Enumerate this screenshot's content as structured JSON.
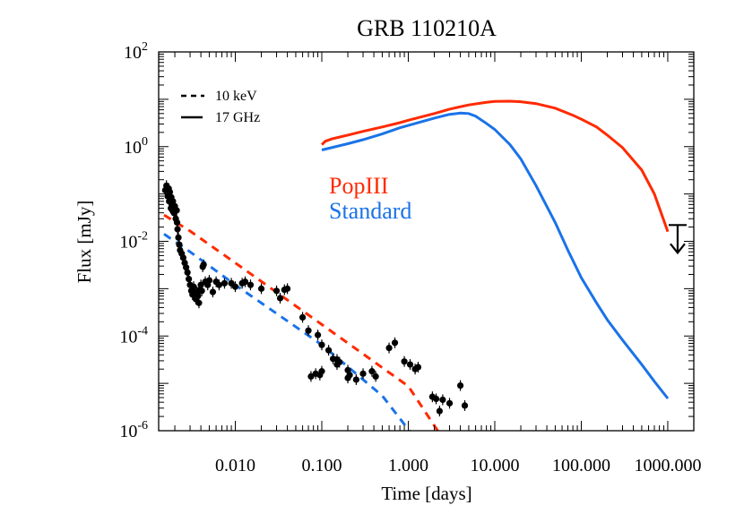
{
  "chart_data": {
    "type": "line",
    "title": "GRB 110210A",
    "xlabel": "Time [days]",
    "ylabel": "Flux [mJy]",
    "x_scale": "log",
    "y_scale": "log",
    "xlim": [
      0.0013,
      2000
    ],
    "ylim": [
      1e-06,
      100
    ],
    "x_ticks": [
      {
        "value": 0.01,
        "label": "0.010"
      },
      {
        "value": 0.1,
        "label": "0.100"
      },
      {
        "value": 1,
        "label": "1.000"
      },
      {
        "value": 10,
        "label": "10.000"
      },
      {
        "value": 100,
        "label": "100.000"
      },
      {
        "value": 1000,
        "label": "1000.000"
      }
    ],
    "y_ticks": [
      {
        "value": 1e-06,
        "mantissa": "10",
        "exp": "-6"
      },
      {
        "value": 0.0001,
        "mantissa": "10",
        "exp": "-4"
      },
      {
        "value": 0.01,
        "mantissa": "10",
        "exp": "-2"
      },
      {
        "value": 1,
        "mantissa": "10",
        "exp": "0"
      },
      {
        "value": 100,
        "mantissa": "10",
        "exp": "2"
      }
    ],
    "legend": {
      "position": "top-left",
      "entries": [
        {
          "label": "10 keV",
          "style": "dashed"
        },
        {
          "label": "17 GHz",
          "style": "solid"
        }
      ]
    },
    "model_labels": [
      {
        "text": "PopIII",
        "color": "#ff2a00"
      },
      {
        "text": "Standard",
        "color": "#1a73e8"
      }
    ],
    "series": [
      {
        "name": "PopIII",
        "band": "17 GHz",
        "style": "solid",
        "color": "#ff2a00",
        "points": [
          [
            0.1,
            1.1
          ],
          [
            0.11,
            1.3
          ],
          [
            0.13,
            1.45
          ],
          [
            0.2,
            1.75
          ],
          [
            0.3,
            2.1
          ],
          [
            0.5,
            2.6
          ],
          [
            0.8,
            3.2
          ],
          [
            1,
            3.6
          ],
          [
            2,
            5
          ],
          [
            3,
            6.2
          ],
          [
            5,
            7.6
          ],
          [
            8,
            8.6
          ],
          [
            10,
            9
          ],
          [
            15,
            9.1
          ],
          [
            20,
            8.9
          ],
          [
            30,
            8.1
          ],
          [
            50,
            6.5
          ],
          [
            80,
            4.6
          ],
          [
            100,
            3.8
          ],
          [
            150,
            2.6
          ],
          [
            200,
            1.75
          ],
          [
            300,
            0.95
          ],
          [
            500,
            0.32
          ],
          [
            700,
            0.1
          ],
          [
            1000,
            0.016
          ]
        ]
      },
      {
        "name": "Standard",
        "band": "17 GHz",
        "style": "solid",
        "color": "#1a73e8",
        "points": [
          [
            0.1,
            0.85
          ],
          [
            0.2,
            1.15
          ],
          [
            0.3,
            1.4
          ],
          [
            0.5,
            1.85
          ],
          [
            0.8,
            2.5
          ],
          [
            1,
            2.8
          ],
          [
            2,
            4
          ],
          [
            3,
            4.8
          ],
          [
            4,
            5.1
          ],
          [
            5,
            5.0
          ],
          [
            6,
            4.4
          ],
          [
            8,
            3.1
          ],
          [
            10,
            2.3
          ],
          [
            15,
            1.1
          ],
          [
            20,
            0.55
          ],
          [
            30,
            0.15
          ],
          [
            50,
            0.025
          ],
          [
            70,
            0.0065
          ],
          [
            100,
            0.0017
          ],
          [
            150,
            0.0005
          ],
          [
            200,
            0.00022
          ],
          [
            300,
            8.2e-05
          ],
          [
            500,
            2.5e-05
          ],
          [
            700,
            1.1e-05
          ],
          [
            1000,
            4.8e-06
          ]
        ]
      },
      {
        "name": "PopIII",
        "band": "10 keV",
        "style": "dashed",
        "color": "#ff2a00",
        "points": [
          [
            0.0015,
            0.036
          ],
          [
            0.003,
            0.0165
          ],
          [
            0.01,
            0.0035
          ],
          [
            0.1,
            0.000175
          ],
          [
            1,
            8.7e-06
          ],
          [
            2.6,
            6.2e-07
          ]
        ]
      },
      {
        "name": "Standard",
        "band": "10 keV",
        "style": "dashed",
        "color": "#1a73e8",
        "points": [
          [
            0.0015,
            0.0142
          ],
          [
            0.003,
            0.006
          ],
          [
            0.01,
            0.0012
          ],
          [
            0.1,
            6.5e-05
          ],
          [
            0.5,
            5.5e-06
          ],
          [
            1.1,
            8.5e-07
          ]
        ]
      }
    ],
    "observations": {
      "color": "#000000",
      "points": [
        [
          0.00155,
          0.12
        ],
        [
          0.0016,
          0.15
        ],
        [
          0.00165,
          0.09
        ],
        [
          0.0017,
          0.13
        ],
        [
          0.00172,
          0.07
        ],
        [
          0.00175,
          0.11
        ],
        [
          0.0018,
          0.05
        ],
        [
          0.00182,
          0.085
        ],
        [
          0.00185,
          0.06
        ],
        [
          0.00188,
          0.045
        ],
        [
          0.0019,
          0.07
        ],
        [
          0.00195,
          0.04
        ],
        [
          0.002,
          0.055
        ],
        [
          0.00205,
          0.03
        ],
        [
          0.0021,
          0.045
        ],
        [
          0.00212,
          0.025
        ],
        [
          0.00215,
          0.018
        ],
        [
          0.0022,
          0.012
        ],
        [
          0.00225,
          0.0085
        ],
        [
          0.0023,
          0.0065
        ],
        [
          0.0024,
          0.0055
        ],
        [
          0.0025,
          0.0045
        ],
        [
          0.0026,
          0.0035
        ],
        [
          0.0027,
          0.0028
        ],
        [
          0.0028,
          0.0022
        ],
        [
          0.0029,
          0.0016
        ],
        [
          0.003,
          0.0012
        ],
        [
          0.0031,
          0.0009
        ],
        [
          0.0032,
          0.00075
        ],
        [
          0.0033,
          0.0011
        ],
        [
          0.0034,
          0.0008
        ],
        [
          0.0035,
          0.0006
        ],
        [
          0.0036,
          0.00085
        ],
        [
          0.0037,
          0.0007
        ],
        [
          0.0038,
          0.0005
        ],
        [
          0.0039,
          0.00095
        ],
        [
          0.004,
          0.0012
        ],
        [
          0.0041,
          0.0009
        ],
        [
          0.0042,
          0.0029
        ],
        [
          0.0043,
          0.0032
        ],
        [
          0.0045,
          0.0014
        ],
        [
          0.0048,
          0.0012
        ],
        [
          0.005,
          0.0015
        ],
        [
          0.0055,
          0.00085
        ],
        [
          0.006,
          0.0014
        ],
        [
          0.0065,
          0.0012
        ],
        [
          0.0075,
          0.0013
        ],
        [
          0.009,
          0.0013
        ],
        [
          0.01,
          0.0011
        ],
        [
          0.012,
          0.0013
        ],
        [
          0.013,
          0.0014
        ],
        [
          0.015,
          0.0012
        ],
        [
          0.02,
          0.001
        ],
        [
          0.03,
          0.0009
        ],
        [
          0.033,
          0.00063
        ],
        [
          0.037,
          0.00095
        ],
        [
          0.04,
          0.001
        ],
        [
          0.06,
          0.000248
        ],
        [
          0.07,
          0.00013
        ],
        [
          0.09,
          0.000105
        ],
        [
          0.1,
          6.5e-05
        ],
        [
          0.12,
          5e-05
        ],
        [
          0.15,
          3.2e-05
        ],
        [
          0.16,
          2.8e-05
        ],
        [
          0.2,
          1.9e-05
        ],
        [
          0.075,
          1.4e-05
        ],
        [
          0.085,
          1.6e-05
        ],
        [
          0.095,
          1.5e-05
        ],
        [
          0.1,
          1.8e-05
        ],
        [
          0.135,
          3.3e-05
        ],
        [
          0.15,
          2.5e-05
        ],
        [
          0.2,
          1.3e-05
        ],
        [
          0.21,
          1.5e-05
        ],
        [
          0.25,
          1.2e-05
        ],
        [
          0.3,
          1.6e-05
        ],
        [
          0.38,
          1.8e-05
        ],
        [
          0.42,
          1.4e-05
        ],
        [
          0.6,
          5.6e-05
        ],
        [
          0.7,
          7.2e-05
        ],
        [
          0.9,
          2.9e-05
        ],
        [
          1.05,
          2.5e-05
        ],
        [
          1.2,
          2e-05
        ],
        [
          1.3,
          2.2e-05
        ],
        [
          1.9,
          5.2e-06
        ],
        [
          2.1,
          4.7e-06
        ],
        [
          2.3,
          2.6e-06
        ],
        [
          2.5,
          4.5e-06
        ],
        [
          3.0,
          3.8e-06
        ],
        [
          4.0,
          9e-06
        ],
        [
          4.5,
          3.4e-06
        ]
      ]
    },
    "upper_limit": {
      "x": 1300,
      "y": 0.012,
      "color": "#000000"
    }
  }
}
